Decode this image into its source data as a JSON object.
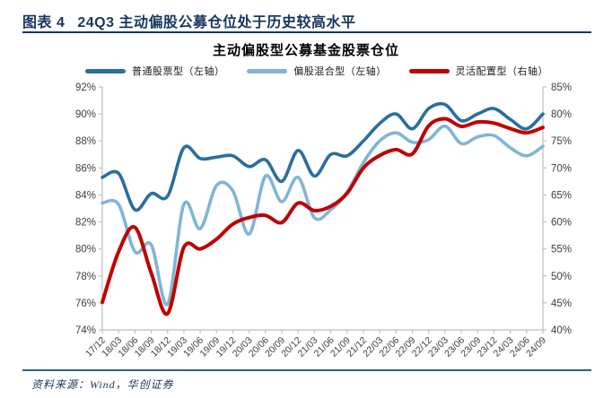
{
  "header": {
    "figure_label": "图表 4",
    "title": "24Q3 主动偏股公募仓位处于历史较高水平"
  },
  "footer": {
    "source": "资料来源：Wind，华创证券"
  },
  "colors": {
    "header_navy": "#17375E",
    "footer_rule_blue": "#2E5F8A",
    "axis_line": "#BFBFBF",
    "axis_text": "#404040",
    "series_dark_blue": "#2A6F9C",
    "series_light_blue": "#7FB6D5",
    "series_red": "#C00000"
  },
  "chart_data": {
    "type": "line",
    "title": "主动偏股型公募基金股票仓位",
    "smooth": true,
    "grid": false,
    "legend_position": "top",
    "categories": [
      "17/12",
      "18/03",
      "18/06",
      "18/09",
      "18/12",
      "19/03",
      "19/06",
      "19/09",
      "19/12",
      "20/03",
      "20/06",
      "20/09",
      "20/12",
      "21/03",
      "21/06",
      "21/09",
      "21/12",
      "22/03",
      "22/06",
      "22/09",
      "22/12",
      "23/03",
      "23/06",
      "23/09",
      "23/12",
      "24/03",
      "24/06",
      "24/09"
    ],
    "left_axis": {
      "min": 74,
      "max": 92,
      "step": 2,
      "suffix": "%"
    },
    "right_axis": {
      "min": 40,
      "max": 85,
      "step": 5,
      "suffix": "%"
    },
    "series": [
      {
        "name": "普通股票型（左轴）",
        "axis": "left",
        "color": "#2A6F9C",
        "values": [
          85.3,
          85.6,
          82.9,
          84.1,
          83.9,
          87.5,
          86.7,
          86.8,
          86.9,
          86.1,
          86.6,
          85.0,
          87.3,
          85.4,
          87.0,
          86.9,
          88.0,
          89.3,
          90.0,
          88.9,
          90.4,
          90.7,
          89.5,
          90.0,
          90.4,
          89.6,
          88.9,
          90.0
        ]
      },
      {
        "name": "偏股混合型（左轴）",
        "axis": "left",
        "color": "#7FB6D5",
        "values": [
          83.4,
          83.3,
          79.8,
          80.3,
          75.9,
          83.3,
          81.5,
          84.7,
          84.3,
          81.1,
          85.4,
          83.5,
          85.3,
          82.3,
          82.9,
          84.2,
          86.4,
          88.0,
          88.6,
          87.9,
          88.1,
          89.1,
          87.8,
          88.3,
          88.4,
          87.5,
          86.9,
          87.6
        ]
      },
      {
        "name": "灵活配置型（右轴）",
        "axis": "right",
        "color": "#C00000",
        "values": [
          45.1,
          54.5,
          59.0,
          50.5,
          43.0,
          55.3,
          55.0,
          56.8,
          59.6,
          60.8,
          61.2,
          59.9,
          63.5,
          62.1,
          62.9,
          65.3,
          70.0,
          72.3,
          73.4,
          72.6,
          77.8,
          79.1,
          77.7,
          78.5,
          78.3,
          77.3,
          76.5,
          77.5
        ]
      }
    ]
  }
}
